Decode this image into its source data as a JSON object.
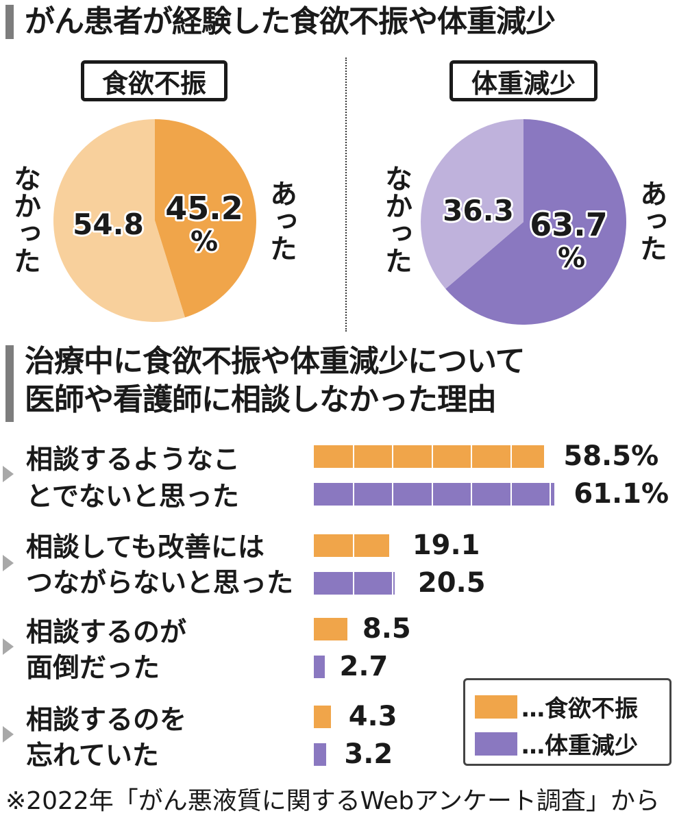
{
  "title1": "がん患者が経験した食欲不振や体重減少",
  "title2_line1": "治療中に食欲不振や体重減少について",
  "title2_line2": "医師や看護師に相談しなかった理由",
  "footer": "※2022年「がん悪液質に関するWebアンケート調査」から",
  "colors": {
    "appetite_dark": "#f0a54a",
    "appetite_light": "#f8d09c",
    "weight_dark": "#8a78c0",
    "weight_light": "#bfb2dc"
  },
  "chart_data": [
    {
      "type": "pie",
      "title": "食欲不振",
      "slices": [
        {
          "label": "あった",
          "value": 45.2,
          "display": "45.2",
          "unit": "%"
        },
        {
          "label": "なかった",
          "value": 54.8,
          "display": "54.8"
        }
      ]
    },
    {
      "type": "pie",
      "title": "体重減少",
      "slices": [
        {
          "label": "あった",
          "value": 63.7,
          "display": "63.7",
          "unit": "%"
        },
        {
          "label": "なかった",
          "value": 36.3,
          "display": "36.3"
        }
      ]
    },
    {
      "type": "bar",
      "orientation": "horizontal",
      "categories": [
        "相談するようなことでないと思った",
        "相談しても改善にはつながらないと思った",
        "相談するのが面倒だった",
        "相談するのを忘れていた"
      ],
      "category_lines": [
        [
          "相談するようなこ",
          "とでないと思った"
        ],
        [
          "相談しても改善には",
          "つながらないと思った"
        ],
        [
          "相談するのが",
          "面倒だった"
        ],
        [
          "相談するのを",
          "忘れていた"
        ]
      ],
      "series": [
        {
          "name": "食欲不振",
          "values": [
            58.5,
            19.1,
            8.5,
            4.3
          ],
          "labels": [
            "58.5%",
            "19.1",
            "8.5",
            "4.3"
          ]
        },
        {
          "name": "体重減少",
          "values": [
            61.1,
            20.5,
            2.7,
            3.2
          ],
          "labels": [
            "61.1%",
            "20.5",
            "2.7",
            "3.2"
          ]
        }
      ],
      "legend": {
        "placement": "bottom-right",
        "items": [
          "…食欲不振",
          "…体重減少"
        ]
      }
    }
  ]
}
